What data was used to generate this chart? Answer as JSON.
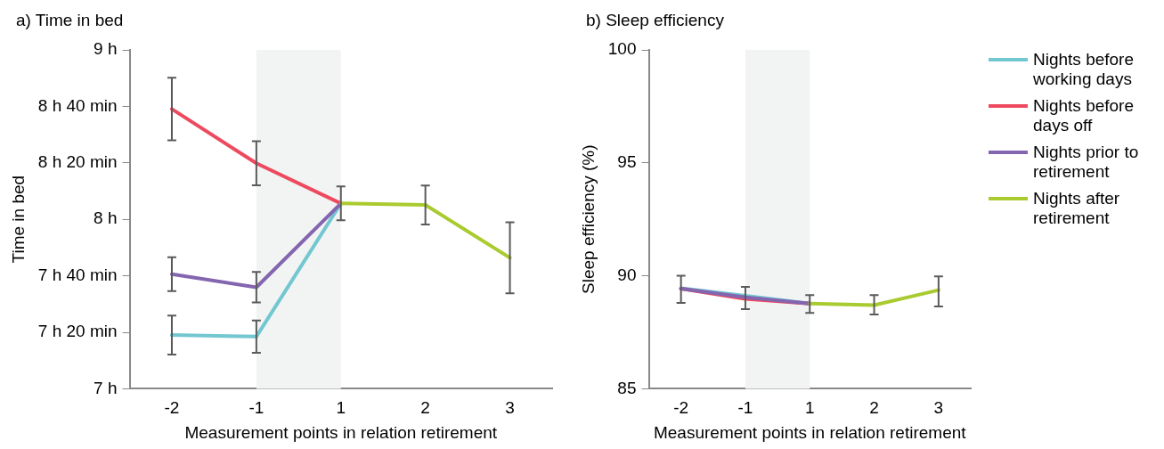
{
  "chart_data": [
    {
      "type": "line",
      "title": "a) Time in bed",
      "xlabel": "Measurement points in relation retirement",
      "ylabel": "Time in bed",
      "categories": [
        "-2",
        "-1",
        "1",
        "2",
        "3"
      ],
      "ylim": [
        7,
        9
      ],
      "yticks": [
        {
          "value": 7,
          "label": "7 h"
        },
        {
          "value": 7.3333,
          "label": "7 h 20 min"
        },
        {
          "value": 7.6667,
          "label": "7 h 40 min"
        },
        {
          "value": 8,
          "label": "8 h"
        },
        {
          "value": 8.3333,
          "label": "8 h 20 min"
        },
        {
          "value": 8.6667,
          "label": "8 h 40 min"
        },
        {
          "value": 9,
          "label": "9 h"
        }
      ],
      "bands": [
        {
          "axis": "x",
          "from": "-1",
          "to": "1",
          "color": "#f2f4f3"
        }
      ],
      "marker": "none",
      "grid": false,
      "legend": false,
      "series": [
        {
          "color": "#72c7d0",
          "values": [
            7.317,
            7.308,
            8.094,
            null,
            null
          ],
          "errors": [
            0.115,
            0.095,
            null,
            null,
            null
          ]
        },
        {
          "color": "#ee4a5f",
          "values": [
            8.651,
            8.331,
            8.094,
            null,
            null
          ],
          "errors": [
            0.185,
            0.13,
            null,
            null,
            null
          ]
        },
        {
          "color": "#8465b0",
          "values": [
            7.676,
            7.599,
            8.094,
            null,
            null
          ],
          "errors": [
            0.1,
            0.09,
            null,
            null,
            null
          ]
        },
        {
          "color": "#a9cb2f",
          "values": [
            null,
            null,
            8.094,
            8.085,
            7.773
          ],
          "errors": [
            null,
            null,
            0.1,
            0.115,
            0.21
          ]
        }
      ]
    },
    {
      "type": "line",
      "title": "b) Sleep efficiency",
      "xlabel": "Measurement points in relation retirement",
      "ylabel": "Sleep efficiency (%)",
      "categories": [
        "-2",
        "-1",
        "1",
        "2",
        "3"
      ],
      "ylim": [
        85,
        100
      ],
      "yticks": [
        85,
        90,
        95,
        100
      ],
      "bands": [
        {
          "axis": "x",
          "from": "-1",
          "to": "1",
          "color": "#f2f4f3"
        }
      ],
      "marker": "none",
      "grid": false,
      "legend": "right",
      "series": [
        {
          "name": "Nights before working days",
          "color": "#72c7d0",
          "values": [
            89.45,
            89.12,
            88.77,
            null,
            null
          ]
        },
        {
          "name": "Nights before days off",
          "color": "#ee4a5f",
          "values": [
            89.43,
            88.98,
            88.77,
            null,
            null
          ]
        },
        {
          "name": "Nights prior to retirement",
          "color": "#8465b0",
          "values": [
            89.43,
            89.05,
            88.77,
            null,
            null
          ],
          "errors": [
            [
              88.8,
              90.0
            ],
            [
              88.53,
              89.51
            ],
            null,
            null,
            null
          ]
        },
        {
          "name": "Nights after retirement",
          "color": "#a9cb2f",
          "values": [
            null,
            null,
            88.77,
            88.7,
            89.37
          ],
          "errors": [
            null,
            null,
            [
              88.36,
              89.15
            ],
            [
              88.29,
              89.15
            ],
            [
              88.64,
              89.97
            ]
          ]
        }
      ]
    }
  ]
}
